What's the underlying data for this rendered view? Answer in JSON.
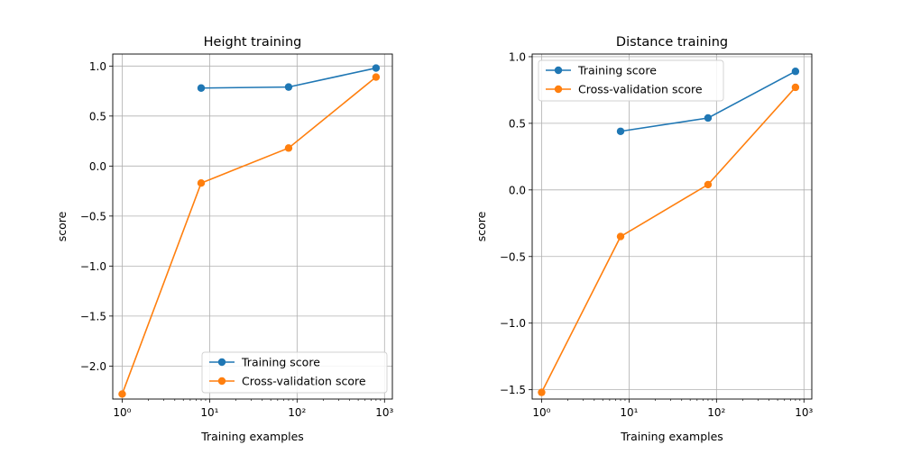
{
  "chart_data": [
    {
      "type": "line",
      "title": "Height training",
      "xlabel": "Training examples",
      "ylabel": "score",
      "xscale": "log",
      "xlim": [
        0.78,
        1230
      ],
      "ylim": [
        -2.33,
        1.12
      ],
      "xtick_labels": [
        "10⁰",
        "10¹",
        "10²",
        "10³"
      ],
      "xticks": [
        1,
        10,
        100,
        1000
      ],
      "yticks": [
        1.0,
        0.5,
        0.0,
        -0.5,
        -1.0,
        -1.5,
        -2.0
      ],
      "ytick_labels": [
        "1.0",
        "0.5",
        "0.0",
        "−0.5",
        "−1.0",
        "−1.5",
        "−2.0"
      ],
      "grid": true,
      "legend_position": "lower-right",
      "series": [
        {
          "name": "Training score",
          "color": "#1f77b4",
          "x": [
            8,
            80,
            800
          ],
          "y": [
            0.78,
            0.79,
            0.98
          ]
        },
        {
          "name": "Cross-validation score",
          "color": "#ff7f0e",
          "x": [
            1,
            8,
            80,
            800
          ],
          "y": [
            -2.28,
            -0.17,
            0.18,
            0.89
          ]
        }
      ]
    },
    {
      "type": "line",
      "title": "Distance training",
      "xlabel": "Training examples",
      "ylabel": "score",
      "xscale": "log",
      "xlim": [
        0.78,
        1230
      ],
      "ylim": [
        -1.57,
        1.02
      ],
      "xtick_labels": [
        "10⁰",
        "10¹",
        "10²",
        "10³"
      ],
      "xticks": [
        1,
        10,
        100,
        1000
      ],
      "yticks": [
        1.0,
        0.5,
        0.0,
        -0.5,
        -1.0,
        -1.5
      ],
      "ytick_labels": [
        "1.0",
        "0.5",
        "0.0",
        "−0.5",
        "−1.0",
        "−1.5"
      ],
      "grid": true,
      "legend_position": "upper-left",
      "series": [
        {
          "name": "Training score",
          "color": "#1f77b4",
          "x": [
            8,
            80,
            800
          ],
          "y": [
            0.44,
            0.54,
            0.89
          ]
        },
        {
          "name": "Cross-validation score",
          "color": "#ff7f0e",
          "x": [
            1,
            8,
            80,
            800
          ],
          "y": [
            -1.52,
            -0.35,
            0.04,
            0.77
          ]
        }
      ]
    }
  ]
}
